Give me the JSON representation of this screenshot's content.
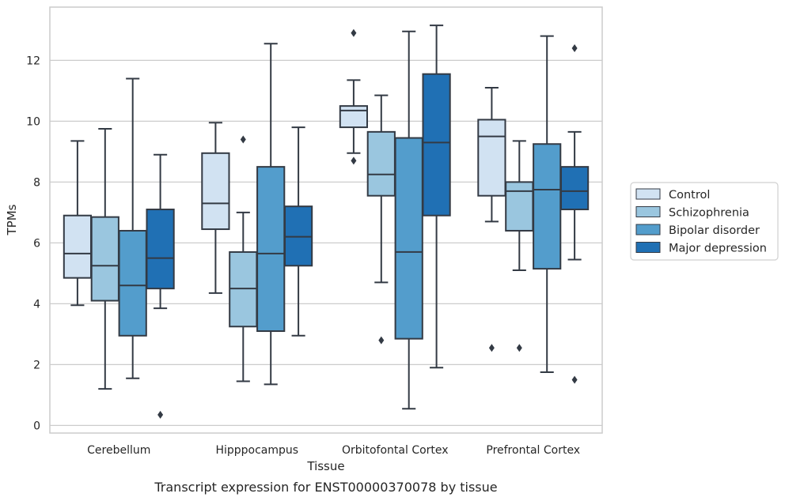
{
  "chart_data": {
    "type": "box",
    "title": "",
    "caption": "Transcript expression for ENST00000370078 by tissue",
    "xlabel": "Tissue",
    "ylabel": "TPMs",
    "ylim": [
      -0.25,
      13.75
    ],
    "yticks": [
      0,
      2,
      4,
      6,
      8,
      10,
      12
    ],
    "grid": "horizontal",
    "legend_position": "right",
    "categories": [
      "Cerebellum",
      "Hipppocampus",
      "Orbitofontal Cortex",
      "Prefrontal Cortex"
    ],
    "series": [
      {
        "name": "Control",
        "color": "#d1e2f2",
        "boxes": [
          {
            "whislo": 3.95,
            "q1": 4.85,
            "med": 5.65,
            "q3": 6.9,
            "whishi": 9.35,
            "fliers": []
          },
          {
            "whislo": 4.35,
            "q1": 6.45,
            "med": 7.3,
            "q3": 8.95,
            "whishi": 9.95,
            "fliers": []
          },
          {
            "whislo": 8.95,
            "q1": 9.8,
            "med": 10.35,
            "q3": 10.5,
            "whishi": 11.35,
            "fliers": [
              12.9,
              8.7
            ]
          },
          {
            "whislo": 6.7,
            "q1": 7.55,
            "med": 9.5,
            "q3": 10.05,
            "whishi": 11.1,
            "fliers": [
              2.55
            ]
          }
        ]
      },
      {
        "name": "Schizophrenia",
        "color": "#9ac6df",
        "boxes": [
          {
            "whislo": 1.2,
            "q1": 4.1,
            "med": 5.25,
            "q3": 6.85,
            "whishi": 9.75,
            "fliers": []
          },
          {
            "whislo": 1.45,
            "q1": 3.25,
            "med": 4.5,
            "q3": 5.7,
            "whishi": 7.0,
            "fliers": [
              9.4
            ]
          },
          {
            "whislo": 4.7,
            "q1": 7.55,
            "med": 8.25,
            "q3": 9.65,
            "whishi": 10.85,
            "fliers": [
              2.8
            ]
          },
          {
            "whislo": 5.1,
            "q1": 6.4,
            "med": 7.7,
            "q3": 8.0,
            "whishi": 9.35,
            "fliers": [
              2.55
            ]
          }
        ]
      },
      {
        "name": "Bipolar disorder",
        "color": "#539dcc",
        "boxes": [
          {
            "whislo": 1.55,
            "q1": 2.95,
            "med": 4.6,
            "q3": 6.4,
            "whishi": 11.4,
            "fliers": []
          },
          {
            "whislo": 1.35,
            "q1": 3.1,
            "med": 5.65,
            "q3": 8.5,
            "whishi": 12.55,
            "fliers": []
          },
          {
            "whislo": 0.55,
            "q1": 2.85,
            "med": 5.7,
            "q3": 9.45,
            "whishi": 12.95,
            "fliers": []
          },
          {
            "whislo": 1.75,
            "q1": 5.15,
            "med": 7.75,
            "q3": 9.25,
            "whishi": 12.8,
            "fliers": []
          }
        ]
      },
      {
        "name": "Major depression",
        "color": "#2070b4",
        "boxes": [
          {
            "whislo": 3.85,
            "q1": 4.5,
            "med": 5.5,
            "q3": 7.1,
            "whishi": 8.9,
            "fliers": [
              0.35
            ]
          },
          {
            "whislo": 2.95,
            "q1": 5.25,
            "med": 6.2,
            "q3": 7.2,
            "whishi": 9.8,
            "fliers": []
          },
          {
            "whislo": 1.9,
            "q1": 6.9,
            "med": 9.3,
            "q3": 11.55,
            "whishi": 13.15,
            "fliers": []
          },
          {
            "whislo": 5.45,
            "q1": 7.1,
            "med": 7.7,
            "q3": 8.5,
            "whishi": 9.65,
            "fliers": [
              12.4,
              1.5
            ]
          }
        ]
      }
    ]
  },
  "colors": {
    "grid": "#cccccc",
    "frame": "#cccccc",
    "stroke": "#333a44",
    "legend_border": "#d0d0d0"
  }
}
